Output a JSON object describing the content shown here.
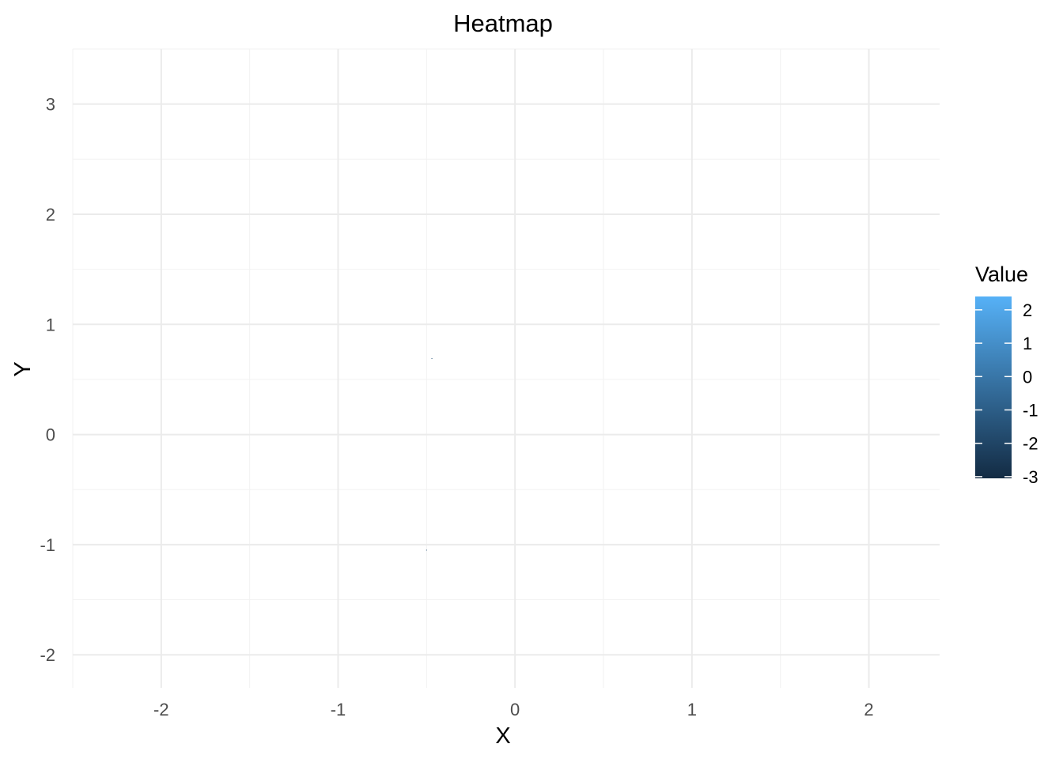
{
  "chart_data": {
    "type": "heatmap",
    "title": "Heatmap",
    "xlabel": "X",
    "ylabel": "Y",
    "xlim": [
      -2.5,
      2.4
    ],
    "ylim": [
      -2.3,
      3.5
    ],
    "x_ticks": [
      -2,
      -1,
      0,
      1,
      2
    ],
    "x_tick_labels": [
      "-2",
      "-1",
      "0",
      "1",
      "2"
    ],
    "y_ticks": [
      -2,
      -1,
      0,
      1,
      2,
      3
    ],
    "y_tick_labels": [
      "-2",
      "-1",
      "0",
      "1",
      "2",
      "3"
    ],
    "grid": true,
    "legend": {
      "title": "Value",
      "placement": "right",
      "range": [
        -3.05,
        2.4
      ],
      "ticks": [
        2,
        1,
        0,
        -1,
        -2,
        -3
      ],
      "tick_labels": [
        "2",
        "1",
        "0",
        "-1",
        "-2",
        "-3"
      ],
      "color_low": "#132b43",
      "color_high": "#56b1f7"
    },
    "cells": [
      {
        "x": -0.47,
        "y": 0.69,
        "value": -1.5
      },
      {
        "x": -0.5,
        "y": -1.05,
        "value": -1.5
      }
    ]
  }
}
